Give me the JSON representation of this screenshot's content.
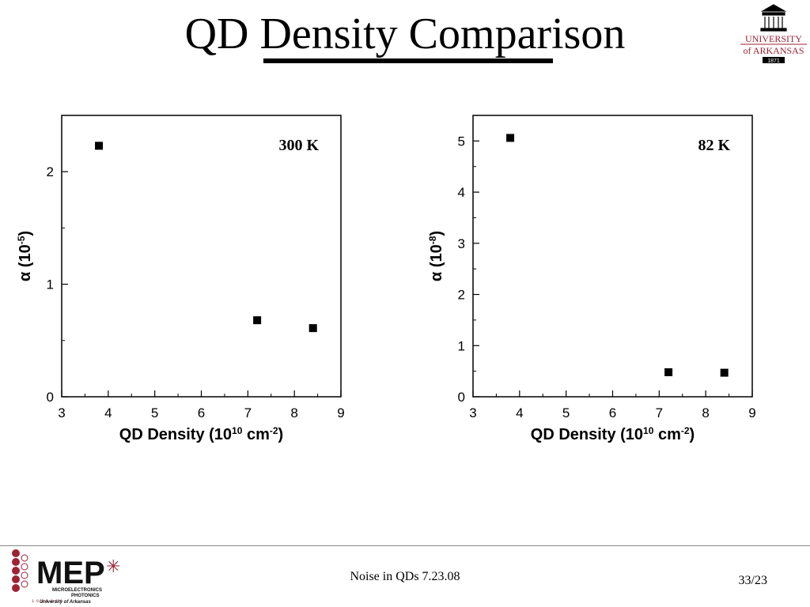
{
  "slide": {
    "title": "QD Density Comparison",
    "footer": "Noise in QDs 7.23.08",
    "page": "33/23"
  },
  "logos": {
    "university": {
      "line1": "UNIVERSITY",
      "line2": "of ARKANSAS",
      "year": "1871",
      "color": "#9d2235"
    },
    "mep": {
      "text": "MEP",
      "sub1": "MICROELECTRONICS",
      "sub2": "PHOTONICS",
      "sub3": "University of Arkansas",
      "binary": "1 0 0 1 0 1 1",
      "color": "#9d2235"
    }
  },
  "chart_data": [
    {
      "type": "scatter",
      "annotation": "300 K",
      "xlabel": "QD Density (10^10 cm^-2)",
      "ylabel": "α (10^-5)",
      "xlim": [
        3,
        9
      ],
      "ylim": [
        0,
        2.5
      ],
      "xticks": [
        3,
        4,
        5,
        6,
        7,
        8,
        9
      ],
      "yticks": [
        0,
        1,
        2
      ],
      "series": [
        {
          "x": [
            3.8,
            7.2,
            8.4
          ],
          "y": [
            2.23,
            0.68,
            0.61
          ]
        }
      ]
    },
    {
      "type": "scatter",
      "annotation": "82 K",
      "xlabel": "QD Density (10^10 cm^-2)",
      "ylabel": "α (10^-8)",
      "xlim": [
        3,
        9
      ],
      "ylim": [
        0,
        5.5
      ],
      "xticks": [
        3,
        4,
        5,
        6,
        7,
        8,
        9
      ],
      "yticks": [
        0,
        1,
        2,
        3,
        4,
        5
      ],
      "series": [
        {
          "x": [
            3.8,
            7.2,
            8.4
          ],
          "y": [
            5.06,
            0.48,
            0.47
          ]
        }
      ]
    }
  ]
}
